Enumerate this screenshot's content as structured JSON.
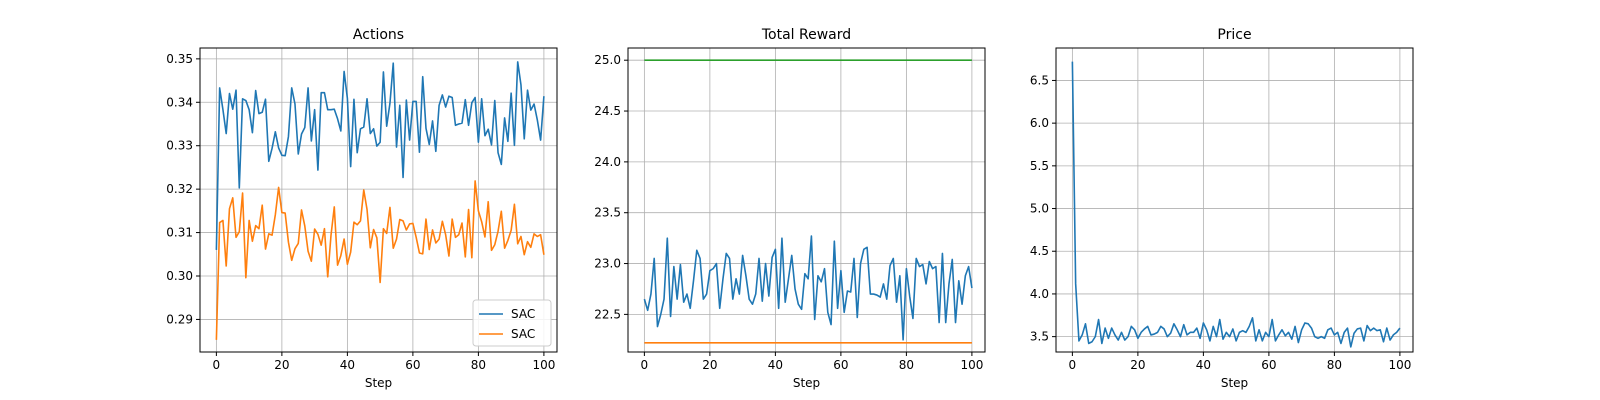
{
  "chart_data": [
    {
      "type": "line",
      "title": "Actions",
      "xlabel": "Step",
      "ylabel": "",
      "xlim": [
        -5,
        104
      ],
      "ylim": [
        0.2825,
        0.3525
      ],
      "xticks": [
        0,
        20,
        40,
        60,
        80,
        100
      ],
      "yticks": [
        0.29,
        0.3,
        0.31,
        0.32,
        0.33,
        0.34,
        0.35
      ],
      "ytick_labels": [
        "0.29",
        "0.30",
        "0.31",
        "0.32",
        "0.33",
        "0.34",
        "0.35"
      ],
      "grid": true,
      "legend": "lower-right",
      "series": [
        {
          "name": "SAC",
          "color": "#1f77b4",
          "values": [
            0.306,
            0.3433,
            0.3383,
            0.3328,
            0.342,
            0.3384,
            0.3428,
            0.3203,
            0.3408,
            0.3404,
            0.3383,
            0.333,
            0.3427,
            0.3374,
            0.3377,
            0.3407,
            0.3264,
            0.3294,
            0.3332,
            0.3295,
            0.3278,
            0.3277,
            0.3321,
            0.3433,
            0.3396,
            0.3281,
            0.3327,
            0.3342,
            0.3433,
            0.3311,
            0.3383,
            0.3244,
            0.3422,
            0.3422,
            0.3383,
            0.3383,
            0.3384,
            0.3362,
            0.3334,
            0.3471,
            0.3409,
            0.3252,
            0.3407,
            0.3284,
            0.3339,
            0.3343,
            0.3408,
            0.3328,
            0.3339,
            0.3299,
            0.3308,
            0.347,
            0.3345,
            0.3398,
            0.349,
            0.3297,
            0.3393,
            0.3227,
            0.3405,
            0.3313,
            0.3402,
            0.3402,
            0.3285,
            0.3459,
            0.334,
            0.3303,
            0.3357,
            0.3287,
            0.3393,
            0.3417,
            0.3389,
            0.3414,
            0.3411,
            0.3347,
            0.335,
            0.3352,
            0.3406,
            0.3347,
            0.3399,
            0.3411,
            0.3308,
            0.3408,
            0.3323,
            0.3338,
            0.3302,
            0.3404,
            0.3284,
            0.3257,
            0.3364,
            0.331,
            0.3421,
            0.3301,
            0.3493,
            0.344,
            0.3316,
            0.3428,
            0.3382,
            0.3396,
            0.3359,
            0.3313,
            0.3414
          ]
        },
        {
          "name": "SAC",
          "color": "#ff7f0e",
          "values": [
            0.2853,
            0.3123,
            0.3128,
            0.3023,
            0.3155,
            0.318,
            0.3089,
            0.3102,
            0.3191,
            0.2996,
            0.3128,
            0.308,
            0.3116,
            0.3109,
            0.3163,
            0.3062,
            0.3097,
            0.3094,
            0.3141,
            0.3204,
            0.3146,
            0.3145,
            0.3078,
            0.3036,
            0.3063,
            0.3075,
            0.3152,
            0.3115,
            0.3057,
            0.3034,
            0.3108,
            0.3096,
            0.3071,
            0.3109,
            0.2998,
            0.3094,
            0.3159,
            0.3025,
            0.3047,
            0.3085,
            0.3027,
            0.3055,
            0.3124,
            0.3118,
            0.3127,
            0.3198,
            0.3153,
            0.3065,
            0.3107,
            0.3088,
            0.2985,
            0.3109,
            0.3098,
            0.3158,
            0.3064,
            0.3085,
            0.313,
            0.3127,
            0.3106,
            0.312,
            0.3121,
            0.3089,
            0.3053,
            0.3051,
            0.3131,
            0.3061,
            0.3106,
            0.3076,
            0.3085,
            0.3126,
            0.3095,
            0.3046,
            0.3131,
            0.3089,
            0.3095,
            0.3122,
            0.3044,
            0.3153,
            0.3042,
            0.3219,
            0.315,
            0.3125,
            0.309,
            0.3171,
            0.3059,
            0.3072,
            0.3103,
            0.3149,
            0.3064,
            0.3082,
            0.3105,
            0.3165,
            0.3074,
            0.3091,
            0.3049,
            0.3079,
            0.3066,
            0.3097,
            0.3091,
            0.3095,
            0.3049
          ]
        }
      ]
    },
    {
      "type": "line",
      "title": "Total Reward",
      "xlabel": "Step",
      "ylabel": "",
      "xlim": [
        -5,
        104
      ],
      "ylim": [
        22.13,
        25.12
      ],
      "xticks": [
        0,
        20,
        40,
        60,
        80,
        100
      ],
      "yticks": [
        22.5,
        23.0,
        23.5,
        24.0,
        24.5,
        25.0
      ],
      "ytick_labels": [
        "22.5",
        "23.0",
        "23.5",
        "24.0",
        "24.5",
        "25.0"
      ],
      "grid": true,
      "series": [
        {
          "color": "#1f77b4",
          "values": [
            22.65,
            22.54,
            22.7,
            23.05,
            22.38,
            22.5,
            22.65,
            23.25,
            22.48,
            22.97,
            22.65,
            22.99,
            22.62,
            22.7,
            22.56,
            22.83,
            23.13,
            23.05,
            22.65,
            22.7,
            22.93,
            22.95,
            23.0,
            22.56,
            22.85,
            23.1,
            23.05,
            22.65,
            22.85,
            22.7,
            23.08,
            22.88,
            22.65,
            22.6,
            22.7,
            23.05,
            22.63,
            23.0,
            22.68,
            23.06,
            23.14,
            22.56,
            23.25,
            22.62,
            22.85,
            23.08,
            22.75,
            22.6,
            22.55,
            22.9,
            22.85,
            23.27,
            22.45,
            22.88,
            22.82,
            22.95,
            22.52,
            22.4,
            23.22,
            22.56,
            22.93,
            22.52,
            22.73,
            22.72,
            23.05,
            22.47,
            23.0,
            23.14,
            23.16,
            22.7,
            22.7,
            22.69,
            22.67,
            22.8,
            22.65,
            22.98,
            23.05,
            22.62,
            22.88,
            22.25,
            22.95,
            22.68,
            22.46,
            23.05,
            22.97,
            22.99,
            22.8,
            23.02,
            22.95,
            22.97,
            22.42,
            23.1,
            22.42,
            22.8,
            23.04,
            22.42,
            22.83,
            22.6,
            22.88,
            22.97,
            22.76
          ]
        },
        {
          "color": "#ff7f0e",
          "values": [
            22.22,
            22.22,
            22.22,
            22.22,
            22.22,
            22.22,
            22.22,
            22.22,
            22.22,
            22.22,
            22.22,
            22.22,
            22.22,
            22.22,
            22.22,
            22.22,
            22.22,
            22.22,
            22.22,
            22.22,
            22.22,
            22.22,
            22.22,
            22.22,
            22.22,
            22.22,
            22.22,
            22.22,
            22.22,
            22.22,
            22.22,
            22.22,
            22.22,
            22.22,
            22.22,
            22.22,
            22.22,
            22.22,
            22.22,
            22.22,
            22.22,
            22.22,
            22.22,
            22.22,
            22.22,
            22.22,
            22.22,
            22.22,
            22.22,
            22.22,
            22.22,
            22.22,
            22.22,
            22.22,
            22.22,
            22.22,
            22.22,
            22.22,
            22.22,
            22.22,
            22.22,
            22.22,
            22.22,
            22.22,
            22.22,
            22.22,
            22.22,
            22.22,
            22.22,
            22.22,
            22.22,
            22.22,
            22.22,
            22.22,
            22.22,
            22.22,
            22.22,
            22.22,
            22.22,
            22.22,
            22.22,
            22.22,
            22.22,
            22.22,
            22.22,
            22.22,
            22.22,
            22.22,
            22.22,
            22.22,
            22.22,
            22.22,
            22.22,
            22.22,
            22.22,
            22.22,
            22.22,
            22.22,
            22.22,
            22.22,
            22.22
          ]
        },
        {
          "color": "#2ca02c",
          "values": [
            25.0,
            25.0,
            25.0,
            25.0,
            25.0,
            25.0,
            25.0,
            25.0,
            25.0,
            25.0,
            25.0,
            25.0,
            25.0,
            25.0,
            25.0,
            25.0,
            25.0,
            25.0,
            25.0,
            25.0,
            25.0,
            25.0,
            25.0,
            25.0,
            25.0,
            25.0,
            25.0,
            25.0,
            25.0,
            25.0,
            25.0,
            25.0,
            25.0,
            25.0,
            25.0,
            25.0,
            25.0,
            25.0,
            25.0,
            25.0,
            25.0,
            25.0,
            25.0,
            25.0,
            25.0,
            25.0,
            25.0,
            25.0,
            25.0,
            25.0,
            25.0,
            25.0,
            25.0,
            25.0,
            25.0,
            25.0,
            25.0,
            25.0,
            25.0,
            25.0,
            25.0,
            25.0,
            25.0,
            25.0,
            25.0,
            25.0,
            25.0,
            25.0,
            25.0,
            25.0,
            25.0,
            25.0,
            25.0,
            25.0,
            25.0,
            25.0,
            25.0,
            25.0,
            25.0,
            25.0,
            25.0,
            25.0,
            25.0,
            25.0,
            25.0,
            25.0,
            25.0,
            25.0,
            25.0,
            25.0,
            25.0,
            25.0,
            25.0,
            25.0,
            25.0,
            25.0,
            25.0,
            25.0,
            25.0,
            25.0,
            25.0
          ]
        }
      ]
    },
    {
      "type": "line",
      "title": "Price",
      "xlabel": "Step",
      "ylabel": "",
      "xlim": [
        -5,
        104
      ],
      "ylim": [
        3.32,
        6.88
      ],
      "xticks": [
        0,
        20,
        40,
        60,
        80,
        100
      ],
      "yticks": [
        3.5,
        4.0,
        4.5,
        5.0,
        5.5,
        6.0,
        6.5
      ],
      "ytick_labels": [
        "3.5",
        "4.0",
        "4.5",
        "5.0",
        "5.5",
        "6.0",
        "6.5"
      ],
      "grid": true,
      "series": [
        {
          "color": "#1f77b4",
          "values": [
            6.72,
            4.12,
            3.45,
            3.52,
            3.65,
            3.42,
            3.44,
            3.5,
            3.7,
            3.42,
            3.6,
            3.48,
            3.6,
            3.52,
            3.46,
            3.55,
            3.46,
            3.5,
            3.62,
            3.58,
            3.48,
            3.55,
            3.59,
            3.62,
            3.52,
            3.53,
            3.55,
            3.62,
            3.59,
            3.5,
            3.54,
            3.65,
            3.58,
            3.5,
            3.64,
            3.52,
            3.55,
            3.55,
            3.6,
            3.48,
            3.66,
            3.58,
            3.45,
            3.62,
            3.5,
            3.7,
            3.47,
            3.55,
            3.5,
            3.59,
            3.45,
            3.55,
            3.57,
            3.55,
            3.62,
            3.72,
            3.45,
            3.58,
            3.45,
            3.55,
            3.5,
            3.7,
            3.45,
            3.52,
            3.58,
            3.51,
            3.55,
            3.47,
            3.62,
            3.43,
            3.58,
            3.66,
            3.65,
            3.6,
            3.5,
            3.48,
            3.5,
            3.48,
            3.58,
            3.6,
            3.52,
            3.55,
            3.42,
            3.55,
            3.6,
            3.38,
            3.54,
            3.59,
            3.6,
            3.45,
            3.63,
            3.57,
            3.6,
            3.57,
            3.58,
            3.44,
            3.6,
            3.46,
            3.52,
            3.55,
            3.6
          ]
        }
      ]
    }
  ]
}
